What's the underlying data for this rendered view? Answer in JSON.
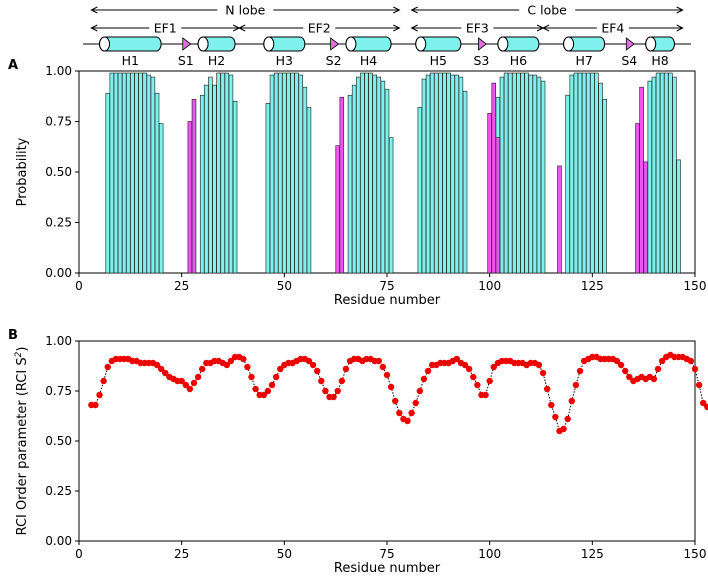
{
  "chart_data": [
    {
      "type": "bar",
      "panel_label": "A",
      "xlabel": "Residue number",
      "ylabel": "Probability",
      "xlim": [
        0,
        150
      ],
      "ylim": [
        0,
        1
      ],
      "xticks": [
        "0",
        "25",
        "50",
        "75",
        "100",
        "125",
        "150"
      ],
      "yticks": [
        "0.00",
        "0.25",
        "0.50",
        "0.75",
        "1.00"
      ],
      "series": [
        {
          "name": "helix",
          "color": "#7ff0ec",
          "x": [
            7,
            8,
            9,
            10,
            11,
            12,
            13,
            14,
            15,
            16,
            17,
            18,
            19,
            20,
            30,
            31,
            32,
            33,
            34,
            35,
            36,
            37,
            38,
            46,
            47,
            48,
            49,
            50,
            51,
            52,
            53,
            54,
            55,
            56,
            66,
            67,
            68,
            69,
            70,
            71,
            72,
            73,
            74,
            75,
            76,
            83,
            84,
            85,
            86,
            87,
            88,
            89,
            90,
            91,
            92,
            93,
            94,
            102,
            103,
            104,
            105,
            106,
            107,
            108,
            109,
            110,
            111,
            112,
            113,
            119,
            120,
            121,
            122,
            123,
            124,
            125,
            126,
            127,
            128,
            139,
            140,
            141,
            142,
            143,
            144,
            145,
            146
          ],
          "values": [
            0.89,
            0.99,
            0.99,
            0.99,
            0.99,
            0.99,
            0.99,
            0.99,
            0.99,
            0.99,
            0.98,
            0.97,
            0.89,
            0.74,
            0.88,
            0.93,
            0.97,
            0.93,
            0.99,
            0.99,
            0.99,
            0.98,
            0.85,
            0.84,
            0.98,
            0.99,
            0.99,
            0.99,
            0.99,
            0.99,
            0.99,
            0.98,
            0.92,
            0.82,
            0.88,
            0.93,
            0.97,
            0.99,
            0.99,
            0.99,
            0.98,
            0.97,
            0.95,
            0.91,
            0.67,
            0.82,
            0.96,
            0.98,
            0.99,
            0.99,
            0.99,
            0.99,
            0.99,
            0.98,
            0.98,
            0.97,
            0.9,
            0.87,
            0.97,
            0.99,
            0.99,
            0.99,
            0.99,
            0.99,
            0.99,
            0.98,
            0.98,
            0.97,
            0.95,
            0.88,
            0.98,
            0.99,
            0.99,
            0.99,
            0.99,
            0.99,
            0.99,
            0.94,
            0.86,
            0.95,
            0.97,
            0.99,
            0.99,
            0.99,
            0.99,
            0.97,
            0.56
          ]
        },
        {
          "name": "strand",
          "color": "#ee55ee",
          "x": [
            27,
            28,
            63,
            64,
            100,
            101,
            102,
            117,
            136,
            137,
            138
          ],
          "values": [
            0.75,
            0.86,
            0.63,
            0.87,
            0.79,
            0.94,
            0.67,
            0.53,
            0.74,
            0.92,
            0.55
          ]
        }
      ],
      "topology": {
        "lobes": [
          {
            "label": "N lobe",
            "start": 3,
            "end": 78
          },
          {
            "label": "C lobe",
            "start": 81,
            "end": 147
          }
        ],
        "ef_hands": [
          {
            "label": "EF1",
            "start": 3,
            "end": 39
          },
          {
            "label": "EF2",
            "start": 39,
            "end": 78
          },
          {
            "label": "EF3",
            "start": 81,
            "end": 113
          },
          {
            "label": "EF4",
            "start": 113,
            "end": 147
          }
        ],
        "helices": [
          {
            "label": "H1",
            "start": 5,
            "end": 20
          },
          {
            "label": "H2",
            "start": 29,
            "end": 38
          },
          {
            "label": "H3",
            "start": 45,
            "end": 55
          },
          {
            "label": "H4",
            "start": 65,
            "end": 76
          },
          {
            "label": "H5",
            "start": 82,
            "end": 93
          },
          {
            "label": "H6",
            "start": 102,
            "end": 112
          },
          {
            "label": "H7",
            "start": 118,
            "end": 128
          },
          {
            "label": "H8",
            "start": 138,
            "end": 145
          }
        ],
        "strands": [
          {
            "label": "S1",
            "at": 26
          },
          {
            "label": "S2",
            "at": 62
          },
          {
            "label": "S3",
            "at": 98
          },
          {
            "label": "S4",
            "at": 134
          }
        ]
      }
    },
    {
      "type": "scatter",
      "panel_label": "B",
      "xlabel": "Residue number",
      "ylabel": "RCI Order parameter (RCI S",
      "ylabel_sup": "2",
      "ylabel_end": ")",
      "xlim": [
        0,
        150
      ],
      "ylim": [
        0,
        1
      ],
      "xticks": [
        "0",
        "25",
        "50",
        "75",
        "100",
        "125",
        "150"
      ],
      "yticks": [
        "0.00",
        "0.25",
        "0.50",
        "0.75",
        "1.00"
      ],
      "color": "#ee0000",
      "line_style": "dotted",
      "x_start": 3,
      "values": [
        0.68,
        0.68,
        0.73,
        0.8,
        0.87,
        0.9,
        0.91,
        0.91,
        0.91,
        0.91,
        0.9,
        0.9,
        0.89,
        0.89,
        0.89,
        0.89,
        0.88,
        0.86,
        0.84,
        0.82,
        0.81,
        0.8,
        0.8,
        0.78,
        0.76,
        0.79,
        0.82,
        0.86,
        0.89,
        0.89,
        0.9,
        0.9,
        0.89,
        0.88,
        0.9,
        0.92,
        0.92,
        0.91,
        0.87,
        0.82,
        0.76,
        0.73,
        0.73,
        0.75,
        0.78,
        0.82,
        0.86,
        0.88,
        0.89,
        0.89,
        0.9,
        0.91,
        0.91,
        0.9,
        0.88,
        0.85,
        0.8,
        0.75,
        0.72,
        0.72,
        0.75,
        0.8,
        0.86,
        0.9,
        0.91,
        0.91,
        0.9,
        0.91,
        0.91,
        0.9,
        0.9,
        0.87,
        0.83,
        0.77,
        0.7,
        0.64,
        0.61,
        0.6,
        0.64,
        0.69,
        0.75,
        0.81,
        0.85,
        0.88,
        0.88,
        0.89,
        0.89,
        0.89,
        0.9,
        0.91,
        0.89,
        0.88,
        0.86,
        0.82,
        0.78,
        0.73,
        0.73,
        0.8,
        0.87,
        0.89,
        0.9,
        0.9,
        0.9,
        0.89,
        0.89,
        0.89,
        0.88,
        0.89,
        0.89,
        0.88,
        0.84,
        0.76,
        0.68,
        0.62,
        0.55,
        0.56,
        0.61,
        0.7,
        0.78,
        0.85,
        0.9,
        0.91,
        0.92,
        0.92,
        0.91,
        0.91,
        0.91,
        0.91,
        0.9,
        0.88,
        0.85,
        0.82,
        0.8,
        0.81,
        0.82,
        0.81,
        0.82,
        0.81,
        0.86,
        0.9,
        0.92,
        0.93,
        0.92,
        0.92,
        0.92,
        0.91,
        0.9,
        0.86,
        0.78,
        0.69,
        0.67
      ]
    }
  ]
}
